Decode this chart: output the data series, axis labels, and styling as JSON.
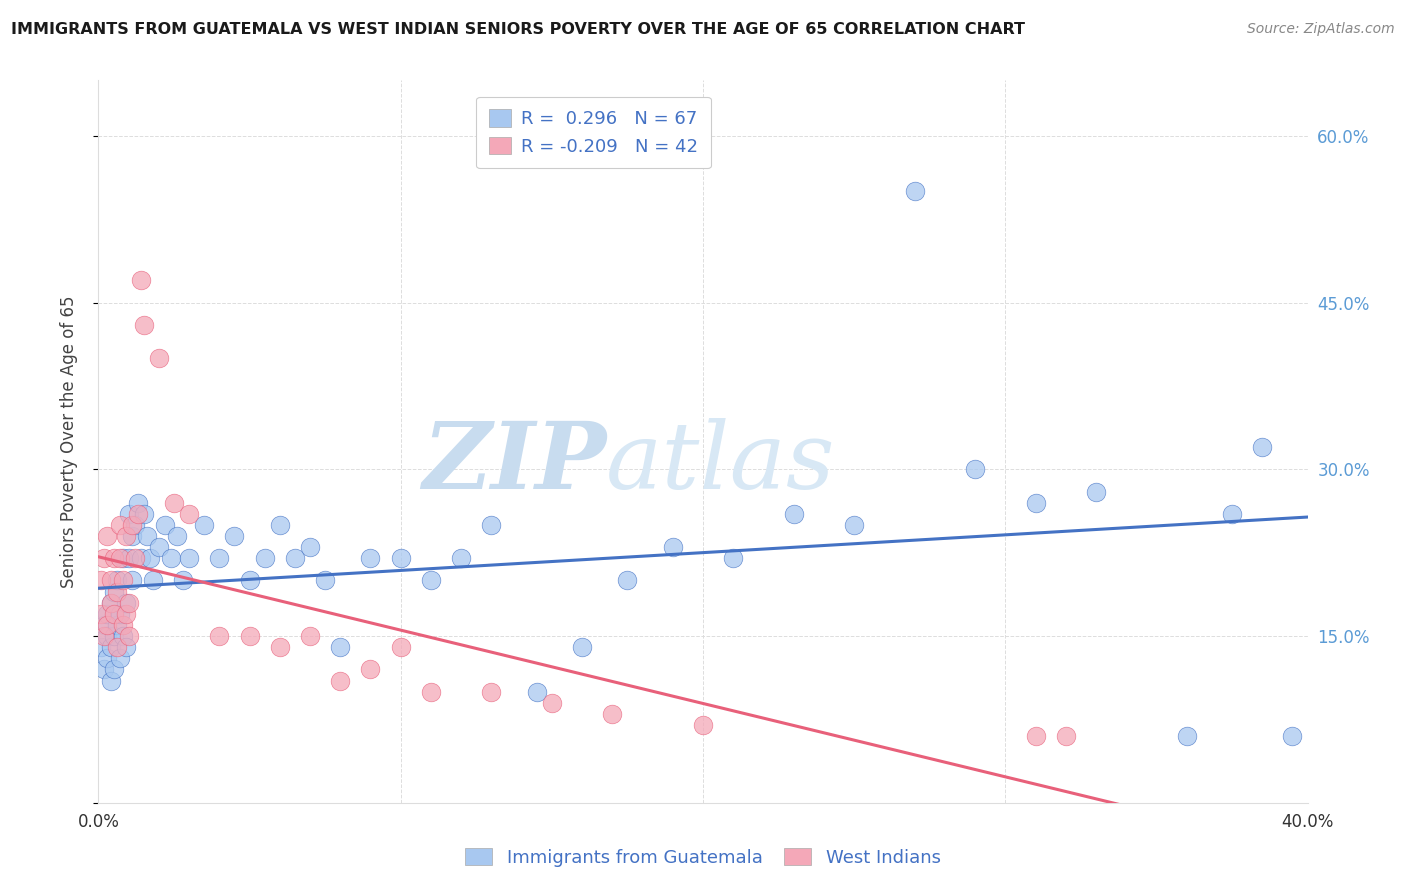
{
  "title": "IMMIGRANTS FROM GUATEMALA VS WEST INDIAN SENIORS POVERTY OVER THE AGE OF 65 CORRELATION CHART",
  "source": "Source: ZipAtlas.com",
  "ylabel": "Seniors Poverty Over the Age of 65",
  "blue_color": "#A8C8F0",
  "pink_color": "#F4A8B8",
  "blue_line_color": "#4472C4",
  "pink_line_color": "#E8607A",
  "R_blue": 0.296,
  "N_blue": 67,
  "R_pink": -0.209,
  "N_pink": 42,
  "blue_scatter_x": [
    0.001,
    0.002,
    0.002,
    0.003,
    0.003,
    0.003,
    0.004,
    0.004,
    0.004,
    0.005,
    0.005,
    0.005,
    0.006,
    0.006,
    0.007,
    0.007,
    0.008,
    0.008,
    0.009,
    0.009,
    0.01,
    0.01,
    0.011,
    0.011,
    0.012,
    0.013,
    0.014,
    0.015,
    0.016,
    0.017,
    0.018,
    0.02,
    0.022,
    0.024,
    0.026,
    0.028,
    0.03,
    0.035,
    0.04,
    0.045,
    0.05,
    0.055,
    0.06,
    0.065,
    0.07,
    0.075,
    0.08,
    0.09,
    0.1,
    0.11,
    0.12,
    0.13,
    0.145,
    0.16,
    0.175,
    0.19,
    0.21,
    0.23,
    0.25,
    0.27,
    0.29,
    0.31,
    0.33,
    0.36,
    0.375,
    0.385,
    0.395
  ],
  "blue_scatter_y": [
    0.14,
    0.12,
    0.16,
    0.13,
    0.15,
    0.17,
    0.11,
    0.14,
    0.18,
    0.12,
    0.15,
    0.19,
    0.16,
    0.2,
    0.13,
    0.17,
    0.15,
    0.22,
    0.14,
    0.18,
    0.22,
    0.26,
    0.2,
    0.24,
    0.25,
    0.27,
    0.22,
    0.26,
    0.24,
    0.22,
    0.2,
    0.23,
    0.25,
    0.22,
    0.24,
    0.2,
    0.22,
    0.25,
    0.22,
    0.24,
    0.2,
    0.22,
    0.25,
    0.22,
    0.23,
    0.2,
    0.14,
    0.22,
    0.22,
    0.2,
    0.22,
    0.25,
    0.1,
    0.14,
    0.2,
    0.23,
    0.22,
    0.26,
    0.25,
    0.55,
    0.3,
    0.27,
    0.28,
    0.06,
    0.26,
    0.32,
    0.06
  ],
  "pink_scatter_x": [
    0.001,
    0.001,
    0.002,
    0.002,
    0.003,
    0.003,
    0.004,
    0.004,
    0.005,
    0.005,
    0.006,
    0.006,
    0.007,
    0.007,
    0.008,
    0.008,
    0.009,
    0.009,
    0.01,
    0.01,
    0.011,
    0.012,
    0.013,
    0.014,
    0.015,
    0.02,
    0.025,
    0.03,
    0.04,
    0.05,
    0.06,
    0.07,
    0.08,
    0.09,
    0.1,
    0.11,
    0.13,
    0.15,
    0.17,
    0.2,
    0.31,
    0.32
  ],
  "pink_scatter_y": [
    0.17,
    0.2,
    0.15,
    0.22,
    0.16,
    0.24,
    0.18,
    0.2,
    0.22,
    0.17,
    0.14,
    0.19,
    0.25,
    0.22,
    0.16,
    0.2,
    0.24,
    0.17,
    0.18,
    0.15,
    0.25,
    0.22,
    0.26,
    0.47,
    0.43,
    0.4,
    0.27,
    0.26,
    0.15,
    0.15,
    0.14,
    0.15,
    0.11,
    0.12,
    0.14,
    0.1,
    0.1,
    0.09,
    0.08,
    0.07,
    0.06,
    0.06
  ],
  "watermark_zip": "ZIP",
  "watermark_atlas": "atlas",
  "background_color": "#FFFFFF",
  "grid_color": "#DDDDDD",
  "xlim": [
    0.0,
    0.4
  ],
  "ylim": [
    0.0,
    0.65
  ],
  "x_ticks": [
    0.0,
    0.1,
    0.2,
    0.3,
    0.4
  ],
  "x_tick_labels": [
    "0.0%",
    "",
    "",
    "",
    "40.0%"
  ],
  "y_ticks": [
    0.0,
    0.15,
    0.3,
    0.45,
    0.6
  ],
  "y_tick_labels_right": [
    "",
    "15.0%",
    "30.0%",
    "45.0%",
    "60.0%"
  ]
}
